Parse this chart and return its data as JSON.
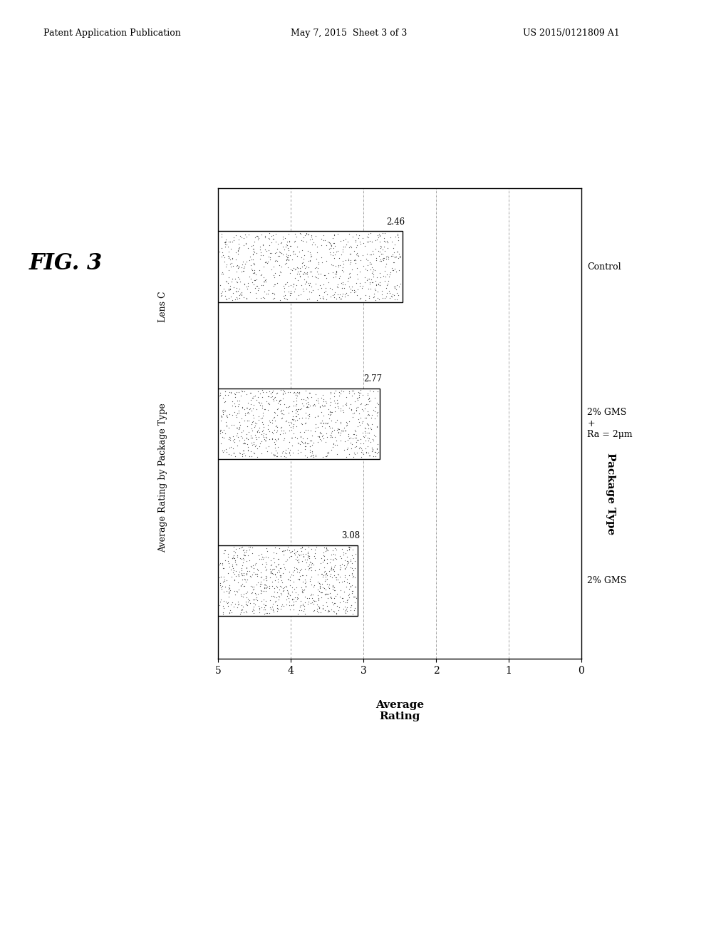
{
  "title": "Lens C",
  "subtitle": "Average Rating by Package Type",
  "categories": [
    "2% GMS",
    "2% GMS\n+\nRa = 2μm",
    "Control"
  ],
  "values": [
    2.46,
    2.77,
    3.08
  ],
  "value_labels": [
    "2.46",
    "2.77",
    "3.08"
  ],
  "xlabel": "Average\nRating",
  "ylabel": "Package Type",
  "xlim_left": 5,
  "xlim_right": 0,
  "xticks": [
    5,
    4,
    3,
    2,
    1,
    0
  ],
  "xtick_labels": [
    "5",
    "4",
    "3",
    "2",
    "1",
    "0"
  ],
  "bar_edge_color": "#000000",
  "bar_height": 0.45,
  "background_color": "#ffffff",
  "header_left": "Patent Application Publication",
  "header_mid": "May 7, 2015  Sheet 3 of 3",
  "header_right": "US 2015/0121809 A1",
  "fig_label": "FIG. 3"
}
